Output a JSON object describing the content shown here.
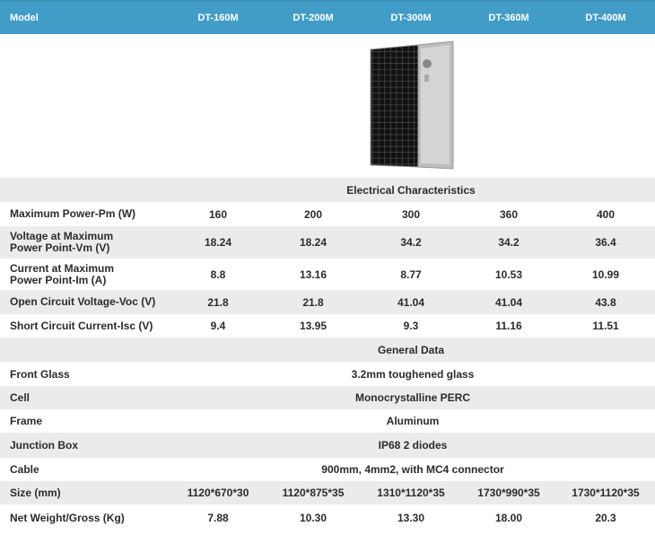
{
  "header": {
    "model_label": "Model",
    "models": [
      "DT-160M",
      "DT-200M",
      "DT-300M",
      "DT-360M",
      "DT-400M"
    ]
  },
  "colors": {
    "header_bg": "#419dc7",
    "alt_row": "#ebebeb"
  },
  "electrical": {
    "title": "Electrical Characteristics",
    "rows": [
      {
        "label": "Maximum Power-Pm (W)",
        "values": [
          "160",
          "200",
          "300",
          "360",
          "400"
        ]
      },
      {
        "label": "Voltage at Maximum Power Point-Vm (V)",
        "values": [
          "18.24",
          "18.24",
          "34.2",
          "34.2",
          "36.4"
        ]
      },
      {
        "label": "Current at Maximum Power Point-Im (A)",
        "values": [
          "8.8",
          "13.16",
          "8.77",
          "10.53",
          "10.99"
        ]
      },
      {
        "label": "Open Circuit Voltage-Voc (V)",
        "values": [
          "21.8",
          "21.8",
          "41.04",
          "41.04",
          "43.8"
        ]
      },
      {
        "label": "Short Circuit Current-Isc (V)",
        "values": [
          "9.4",
          "13.95",
          "9.3",
          "11.16",
          "11.51"
        ]
      }
    ]
  },
  "general": {
    "title": "General Data",
    "shared": [
      {
        "label": "Front Glass",
        "value": "3.2mm toughened glass"
      },
      {
        "label": "Cell",
        "value": "Monocrystalline PERC"
      },
      {
        "label": "Frame",
        "value": "Aluminum"
      },
      {
        "label": "Junction Box",
        "value": "IP68 2 diodes"
      },
      {
        "label": "Cable",
        "value": "900mm, 4mm2, with MC4 connector"
      }
    ],
    "rows": [
      {
        "label": "Size (mm)",
        "values": [
          "1120*670*30",
          "1120*875*35",
          "1310*1120*35",
          "1730*990*35",
          "1730*1120*35"
        ]
      },
      {
        "label": "Net Weight/Gross (Kg)",
        "values": [
          "7.88",
          "10.30",
          "13.30",
          "18.00",
          "20.3"
        ]
      }
    ]
  }
}
